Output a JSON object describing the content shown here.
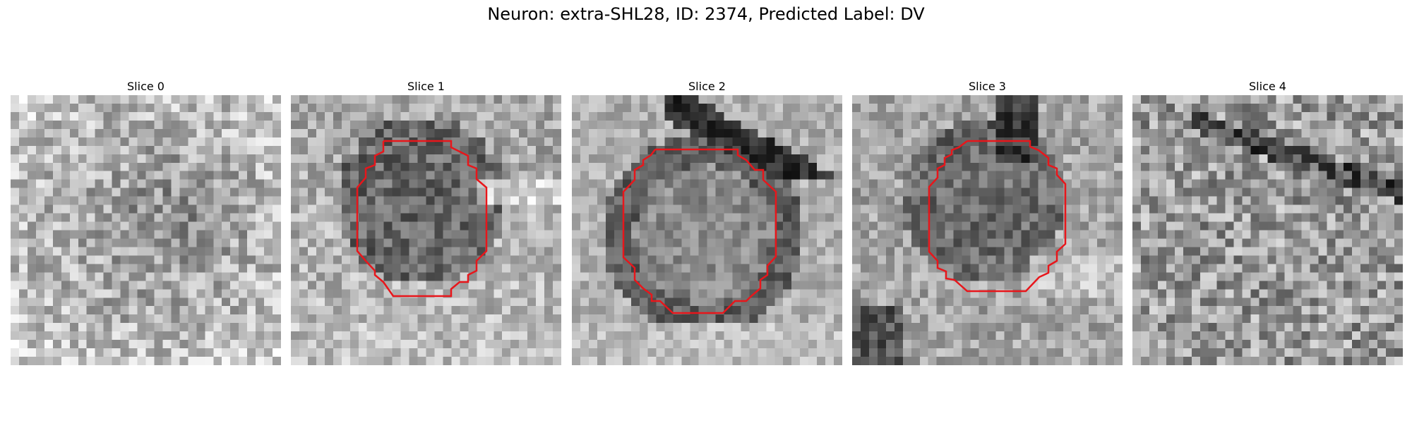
{
  "figure": {
    "title": "Neuron: extra-SHL28, ID: 2374, Predicted Label: DV"
  },
  "slices": [
    {
      "title": "Slice 0",
      "has_contour": false,
      "pattern": "noise-dark-center"
    },
    {
      "title": "Slice 1",
      "has_contour": true,
      "pattern": "cell-lower-bright"
    },
    {
      "title": "Slice 2",
      "has_contour": true,
      "pattern": "cell-ring-diagonal"
    },
    {
      "title": "Slice 3",
      "has_contour": true,
      "pattern": "cell-dark-top"
    },
    {
      "title": "Slice 4",
      "has_contour": false,
      "pattern": "noise-streaks"
    }
  ],
  "colors": {
    "contour": "#e8161b",
    "background": "#ffffff"
  }
}
